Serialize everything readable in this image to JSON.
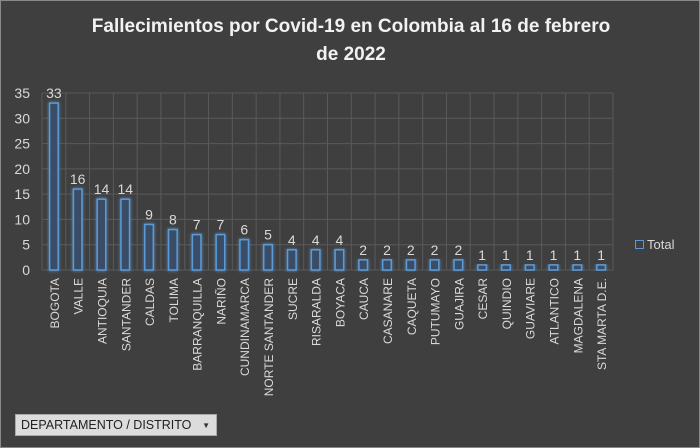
{
  "chart_data": {
    "type": "bar",
    "title": "Fallecimientos por Covid-19 en Colombia al 16 de febrero de 2022",
    "categories": [
      "BOGOTA",
      "VALLE",
      "ANTIOQUIA",
      "SANTANDER",
      "CALDAS",
      "TOLIMA",
      "BARRANQUILLA",
      "NARIÑO",
      "CUNDINAMARCA",
      "NORTE SANTANDER",
      "SUCRE",
      "RISARALDA",
      "BOYACA",
      "CAUCA",
      "CASANARE",
      "CAQUETA",
      "PUTUMAYO",
      "GUAJIRA",
      "CESAR",
      "QUINDIO",
      "GUAVIARE",
      "ATLANTICO",
      "MAGDALENA",
      "STA MARTA D.E."
    ],
    "series": [
      {
        "name": "Total",
        "values": [
          33,
          16,
          14,
          14,
          9,
          8,
          7,
          7,
          6,
          5,
          4,
          4,
          4,
          2,
          2,
          2,
          2,
          2,
          1,
          1,
          1,
          1,
          1,
          1
        ]
      }
    ],
    "ylim": [
      0,
      35
    ],
    "yticks": [
      0,
      5,
      10,
      15,
      20,
      25,
      30,
      35
    ],
    "grid": true,
    "data_labels": true,
    "legend_position": "right",
    "colors": {
      "bar": "#5b9bd5",
      "background": "#3f3f3f",
      "grid": "#5a5a5a",
      "text": "#d9d9d9"
    }
  },
  "filter": {
    "label": "DEPARTAMENTO / DISTRITO",
    "icon": "dropdown-arrow-icon"
  }
}
